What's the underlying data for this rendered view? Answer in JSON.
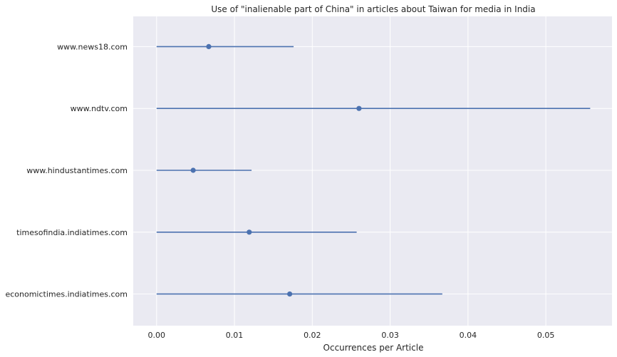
{
  "chart_data": {
    "type": "errorbar-dot",
    "orientation": "horizontal",
    "title": "Use of \"inalienable part of China\" in articles about Taiwan for media in India",
    "xlabel": "Occurrences per Article",
    "ylabel": "",
    "xlim": [
      -0.003,
      0.0585
    ],
    "xticks": [
      0.0,
      0.01,
      0.02,
      0.03,
      0.04,
      0.05
    ],
    "xtick_labels": [
      "0.00",
      "0.01",
      "0.02",
      "0.03",
      "0.04",
      "0.05"
    ],
    "grid": true,
    "legend": null,
    "categories": [
      "www.news18.com",
      "www.ndtv.com",
      "www.hindustantimes.com",
      "timesofindia.indiatimes.com",
      "economictimes.indiatimes.com"
    ],
    "values": [
      0.0067,
      0.026,
      0.0047,
      0.0119,
      0.0171
    ],
    "ci_low": [
      0.0,
      0.0,
      0.0,
      0.0,
      0.0
    ],
    "ci_high": [
      0.0176,
      0.0557,
      0.0122,
      0.0257,
      0.0367
    ],
    "colors": {
      "marker": "#4c72b0",
      "plot_background": "#eaeaf2",
      "grid": "#ffffff",
      "text": "#262626"
    }
  }
}
